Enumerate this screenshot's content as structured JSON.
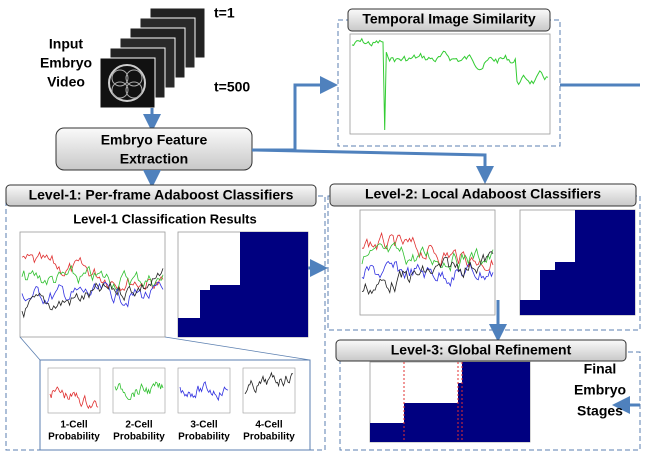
{
  "input": {
    "label": [
      "Input",
      "Embryo",
      "Video"
    ],
    "first_frame": "t=1",
    "last_frame": "t=500"
  },
  "feature_extraction": {
    "label": [
      "Embryo Feature",
      "Extraction"
    ]
  },
  "similarity": {
    "title": "Temporal Image Similarity"
  },
  "level1": {
    "title": "Level-1: Per-frame Adaboost Classifiers",
    "results_title": "Level-1 Classification Results",
    "probabilities": [
      [
        "1-Cell",
        "Probability"
      ],
      [
        "2-Cell",
        "Probability"
      ],
      [
        "3-Cell",
        "Probability"
      ],
      [
        "4-Cell",
        "Probability"
      ]
    ]
  },
  "level2": {
    "title": "Level-2: Local Adaboost Classifiers"
  },
  "level3": {
    "title": "Level-3: Global Refinement"
  },
  "output": {
    "label": [
      "Final",
      "Embryo",
      "Stages"
    ]
  }
}
